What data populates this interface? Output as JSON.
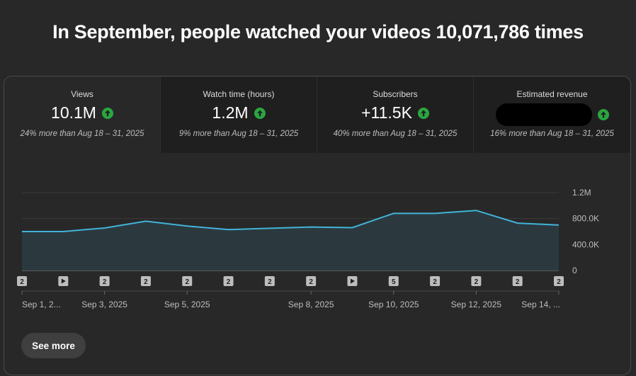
{
  "headline": "In September, people watched your videos 10,071,786 times",
  "metrics": [
    {
      "label": "Views",
      "value": "10.1M",
      "sub": "24% more than Aug 18 – 31, 2025",
      "trend_icon": "arrow-up-icon"
    },
    {
      "label": "Watch time (hours)",
      "value": "1.2M",
      "sub": "9% more than Aug 18 – 31, 2025",
      "trend_icon": "arrow-up-icon"
    },
    {
      "label": "Subscribers",
      "value": "+11.5K",
      "sub": "40% more than Aug 18 – 31, 2025",
      "trend_icon": "arrow-up-icon"
    },
    {
      "label": "Estimated revenue",
      "value": "",
      "sub": "16% more than Aug 18 – 31, 2025",
      "trend_icon": "arrow-up-icon",
      "redacted": true
    }
  ],
  "colors": {
    "line": "#41b4d8",
    "trend_up": "#2ba640",
    "area": "#2b3a40"
  },
  "chart_data": {
    "type": "area",
    "x": [
      "Sep 1, 2025",
      "Sep 2, 2025",
      "Sep 3, 2025",
      "Sep 4, 2025",
      "Sep 5, 2025",
      "Sep 6, 2025",
      "Sep 7, 2025",
      "Sep 8, 2025",
      "Sep 9, 2025",
      "Sep 10, 2025",
      "Sep 11, 2025",
      "Sep 12, 2025",
      "Sep 13, 2025",
      "Sep 14, 2025"
    ],
    "values": [
      600000,
      600000,
      655000,
      760000,
      685000,
      630000,
      650000,
      670000,
      660000,
      880000,
      880000,
      925000,
      730000,
      700000
    ],
    "x_tick_labels": [
      "Sep 1, 2...",
      "Sep 3, 2025",
      "Sep 5, 2025",
      "Sep 8, 2025",
      "Sep 10, 2025",
      "Sep 12, 2025",
      "Sep 14, ..."
    ],
    "x_tick_indices": [
      0,
      2,
      4,
      7,
      9,
      11,
      13
    ],
    "y_ticks": [
      0,
      400000,
      800000,
      1200000
    ],
    "y_tick_labels": [
      "0",
      "400.0K",
      "800.0K",
      "1.2M"
    ],
    "ylim": [
      0,
      1200000
    ],
    "grid": true,
    "markers": [
      "2",
      "play",
      "2",
      "2",
      "2",
      "2",
      "2",
      "2",
      "play",
      "5",
      "2",
      "2",
      "2",
      "2"
    ]
  },
  "see_more_label": "See more"
}
